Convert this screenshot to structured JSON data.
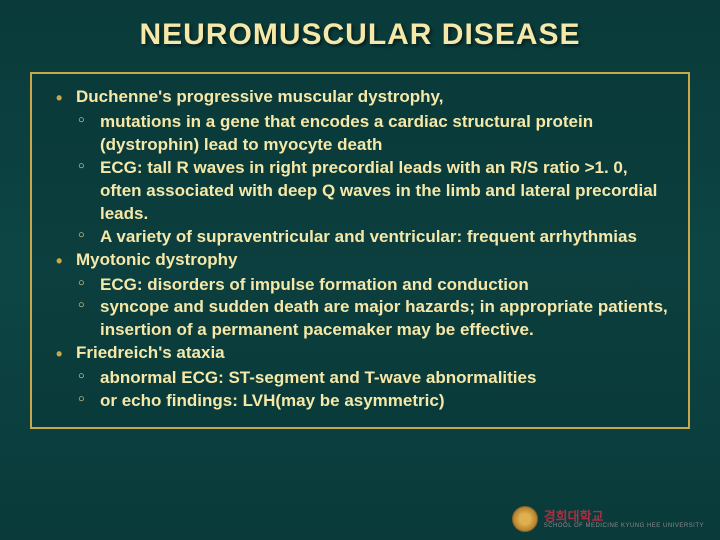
{
  "title": "NEUROMUSCULAR DISEASE",
  "colors": {
    "background_top": "#0a3a3a",
    "background_mid": "#0d4545",
    "border": "#c9a84a",
    "text": "#f5e8a8",
    "bullet": "#c9a84a"
  },
  "topics": [
    {
      "label": "Duchenne's progressive muscular dystrophy,",
      "subs": [
        "mutations in a gene that encodes a cardiac structural protein (dystrophin) lead to myocyte death",
        "ECG: tall R waves in right precordial leads with an R/S ratio >1. 0, often associated with deep Q waves in the limb and lateral precordial leads.",
        "A variety of supraventricular and ventricular: frequent arrhythmias"
      ]
    },
    {
      "label": "Myotonic dystrophy",
      "subs": [
        "ECG: disorders of impulse formation and conduction",
        "syncope and sudden death are major hazards; in appropriate patients, insertion of a permanent pacemaker may be effective."
      ]
    },
    {
      "label": "Friedreich's ataxia",
      "subs": [
        "abnormal ECG: ST-segment and T-wave abnormalities",
        "or echo findings: LVH(may be asymmetric)"
      ]
    }
  ],
  "logo": {
    "name": "경희대학교",
    "sub": "SCHOOL OF MEDICINE KYUNG HEE UNIVERSITY"
  }
}
